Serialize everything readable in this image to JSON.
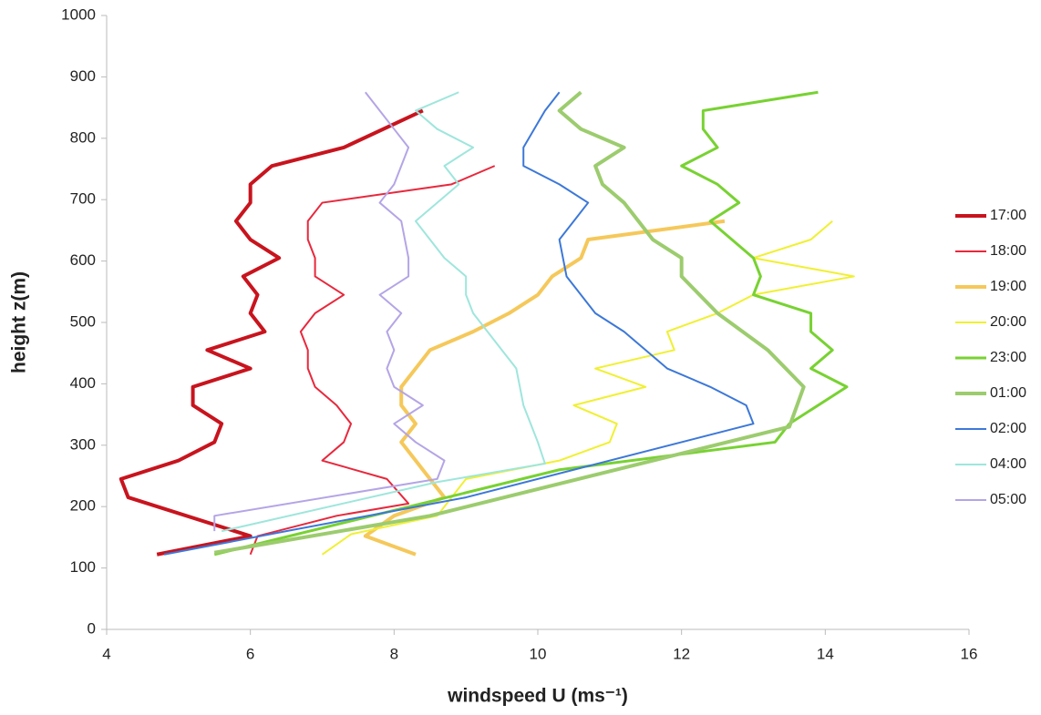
{
  "chart_data": {
    "type": "line",
    "x_label": "windspeed U (ms⁻¹)",
    "y_label": "height z(m)",
    "xlim": [
      4,
      16
    ],
    "xticks": [
      4,
      6,
      8,
      10,
      12,
      14,
      16
    ],
    "ylim": [
      0,
      1000
    ],
    "yticks": [
      0,
      100,
      200,
      300,
      400,
      500,
      600,
      700,
      800,
      900,
      1000
    ],
    "grid": false,
    "legend": "right",
    "series": [
      {
        "name": "17:00",
        "color": "#c8141e",
        "width": 4,
        "x": [
          4.7,
          6.0,
          4.3,
          4.2,
          5.0,
          5.5,
          5.6,
          5.2,
          5.2,
          6.0,
          5.4,
          6.2,
          6.0,
          6.1,
          5.9,
          6.4,
          6.0,
          5.8,
          6.0,
          6.0,
          6.3,
          7.3,
          8.4
        ],
        "values": [
          122,
          152,
          215,
          245,
          275,
          305,
          335,
          365,
          395,
          425,
          455,
          485,
          515,
          545,
          575,
          605,
          635,
          665,
          695,
          725,
          755,
          785,
          845
        ]
      },
      {
        "name": "18:00",
        "color": "#e8283c",
        "width": 2,
        "x": [
          6.0,
          6.1,
          7.2,
          8.2,
          7.9,
          7.0,
          7.3,
          7.4,
          7.2,
          6.9,
          6.8,
          6.8,
          6.7,
          6.9,
          7.3,
          6.9,
          6.9,
          6.8,
          6.8,
          7.0,
          8.8,
          9.4
        ],
        "values": [
          122,
          152,
          185,
          205,
          245,
          275,
          305,
          335,
          365,
          395,
          425,
          455,
          485,
          515,
          545,
          575,
          605,
          635,
          665,
          695,
          725,
          755
        ]
      },
      {
        "name": "19:00",
        "color": "#f5c85a",
        "width": 4,
        "x": [
          8.3,
          7.6,
          8.0,
          8.7,
          8.5,
          8.1,
          8.3,
          8.1,
          8.1,
          8.3,
          8.5,
          9.1,
          9.6,
          10.0,
          10.2,
          10.6,
          10.7,
          12.6
        ],
        "values": [
          122,
          152,
          185,
          215,
          245,
          305,
          335,
          365,
          395,
          425,
          455,
          485,
          515,
          545,
          575,
          605,
          635,
          665
        ]
      },
      {
        "name": "20:00",
        "color": "#f0f032",
        "width": 2,
        "x": [
          7.0,
          7.4,
          8.6,
          8.8,
          9.0,
          10.3,
          11.0,
          11.1,
          10.5,
          11.5,
          10.8,
          11.9,
          11.8,
          12.5,
          13.0,
          14.4,
          13.0,
          13.8,
          14.1
        ],
        "values": [
          122,
          155,
          185,
          215,
          245,
          275,
          305,
          335,
          365,
          395,
          425,
          455,
          485,
          515,
          545,
          575,
          605,
          635,
          665
        ]
      },
      {
        "name": "23:00",
        "color": "#78d232",
        "width": 3,
        "x": [
          5.5,
          10.3,
          13.3,
          13.5,
          14.3,
          13.8,
          14.1,
          13.8,
          13.8,
          13.0,
          13.1,
          13.0,
          12.7,
          12.4,
          12.8,
          12.5,
          12.0,
          12.5,
          12.3,
          12.3,
          13.9
        ],
        "values": [
          122,
          260,
          305,
          335,
          395,
          425,
          455,
          485,
          515,
          545,
          575,
          605,
          635,
          665,
          695,
          725,
          755,
          785,
          815,
          845,
          875
        ]
      },
      {
        "name": "01:00",
        "color": "#9ccc6e",
        "width": 4,
        "x": [
          5.5,
          8.5,
          13.5,
          13.7,
          13.2,
          12.5,
          12.0,
          12.0,
          11.6,
          11.4,
          11.2,
          10.9,
          10.8,
          11.2,
          10.6,
          10.3,
          10.6
        ],
        "values": [
          125,
          185,
          330,
          395,
          455,
          515,
          575,
          605,
          635,
          665,
          695,
          725,
          755,
          785,
          815,
          845,
          875
        ]
      },
      {
        "name": "02:00",
        "color": "#3c78d8",
        "width": 2,
        "x": [
          4.8,
          6.5,
          9.0,
          13.0,
          12.9,
          12.4,
          11.8,
          11.2,
          10.8,
          10.4,
          10.3,
          10.7,
          10.3,
          9.8,
          9.8,
          10.1,
          10.3
        ],
        "values": [
          122,
          160,
          215,
          335,
          365,
          395,
          425,
          485,
          515,
          575,
          635,
          695,
          725,
          755,
          785,
          845,
          875
        ]
      },
      {
        "name": "04:00",
        "color": "#9ee6dc",
        "width": 2,
        "x": [
          5.6,
          8.6,
          10.1,
          10.0,
          9.8,
          9.7,
          9.5,
          9.3,
          9.1,
          9.0,
          9.0,
          8.7,
          8.3,
          8.9,
          8.7,
          9.1,
          8.6,
          8.3,
          8.9
        ],
        "values": [
          160,
          240,
          270,
          305,
          365,
          425,
          455,
          485,
          515,
          545,
          575,
          605,
          665,
          725,
          755,
          785,
          815,
          845,
          875
        ]
      },
      {
        "name": "05:00",
        "color": "#b4a5e6",
        "width": 2,
        "x": [
          5.5,
          5.5,
          8.6,
          8.7,
          8.3,
          8.0,
          8.4,
          8.0,
          7.9,
          8.0,
          7.9,
          8.1,
          7.8,
          8.2,
          8.2,
          8.1,
          7.8,
          8.0,
          8.2,
          8.0,
          7.6
        ],
        "values": [
          160,
          185,
          245,
          275,
          305,
          335,
          365,
          395,
          425,
          455,
          485,
          515,
          545,
          575,
          605,
          665,
          695,
          725,
          785,
          815,
          875
        ]
      }
    ]
  }
}
